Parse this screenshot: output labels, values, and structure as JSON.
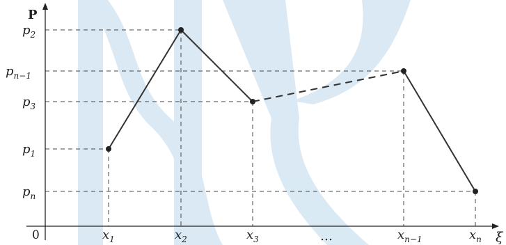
{
  "axes": {
    "y_axis_label": "P",
    "x_axis_label": "ξ",
    "origin_label": "0",
    "ellipsis": "…"
  },
  "y_ticks": [
    {
      "base": "p",
      "sub": "2"
    },
    {
      "base": "p",
      "sub": "n−1"
    },
    {
      "base": "p",
      "sub": "3"
    },
    {
      "base": "p",
      "sub": "1"
    },
    {
      "base": "p",
      "sub": "n"
    }
  ],
  "x_ticks": [
    {
      "base": "x",
      "sub": "1"
    },
    {
      "base": "x",
      "sub": "2"
    },
    {
      "base": "x",
      "sub": "3"
    },
    {
      "base": "x",
      "sub": "n−1"
    },
    {
      "base": "x",
      "sub": "n"
    }
  ],
  "colors": {
    "line": "#333333",
    "dashed": "#444444",
    "point": "#222222",
    "watermark": "#d4e6f3"
  }
}
